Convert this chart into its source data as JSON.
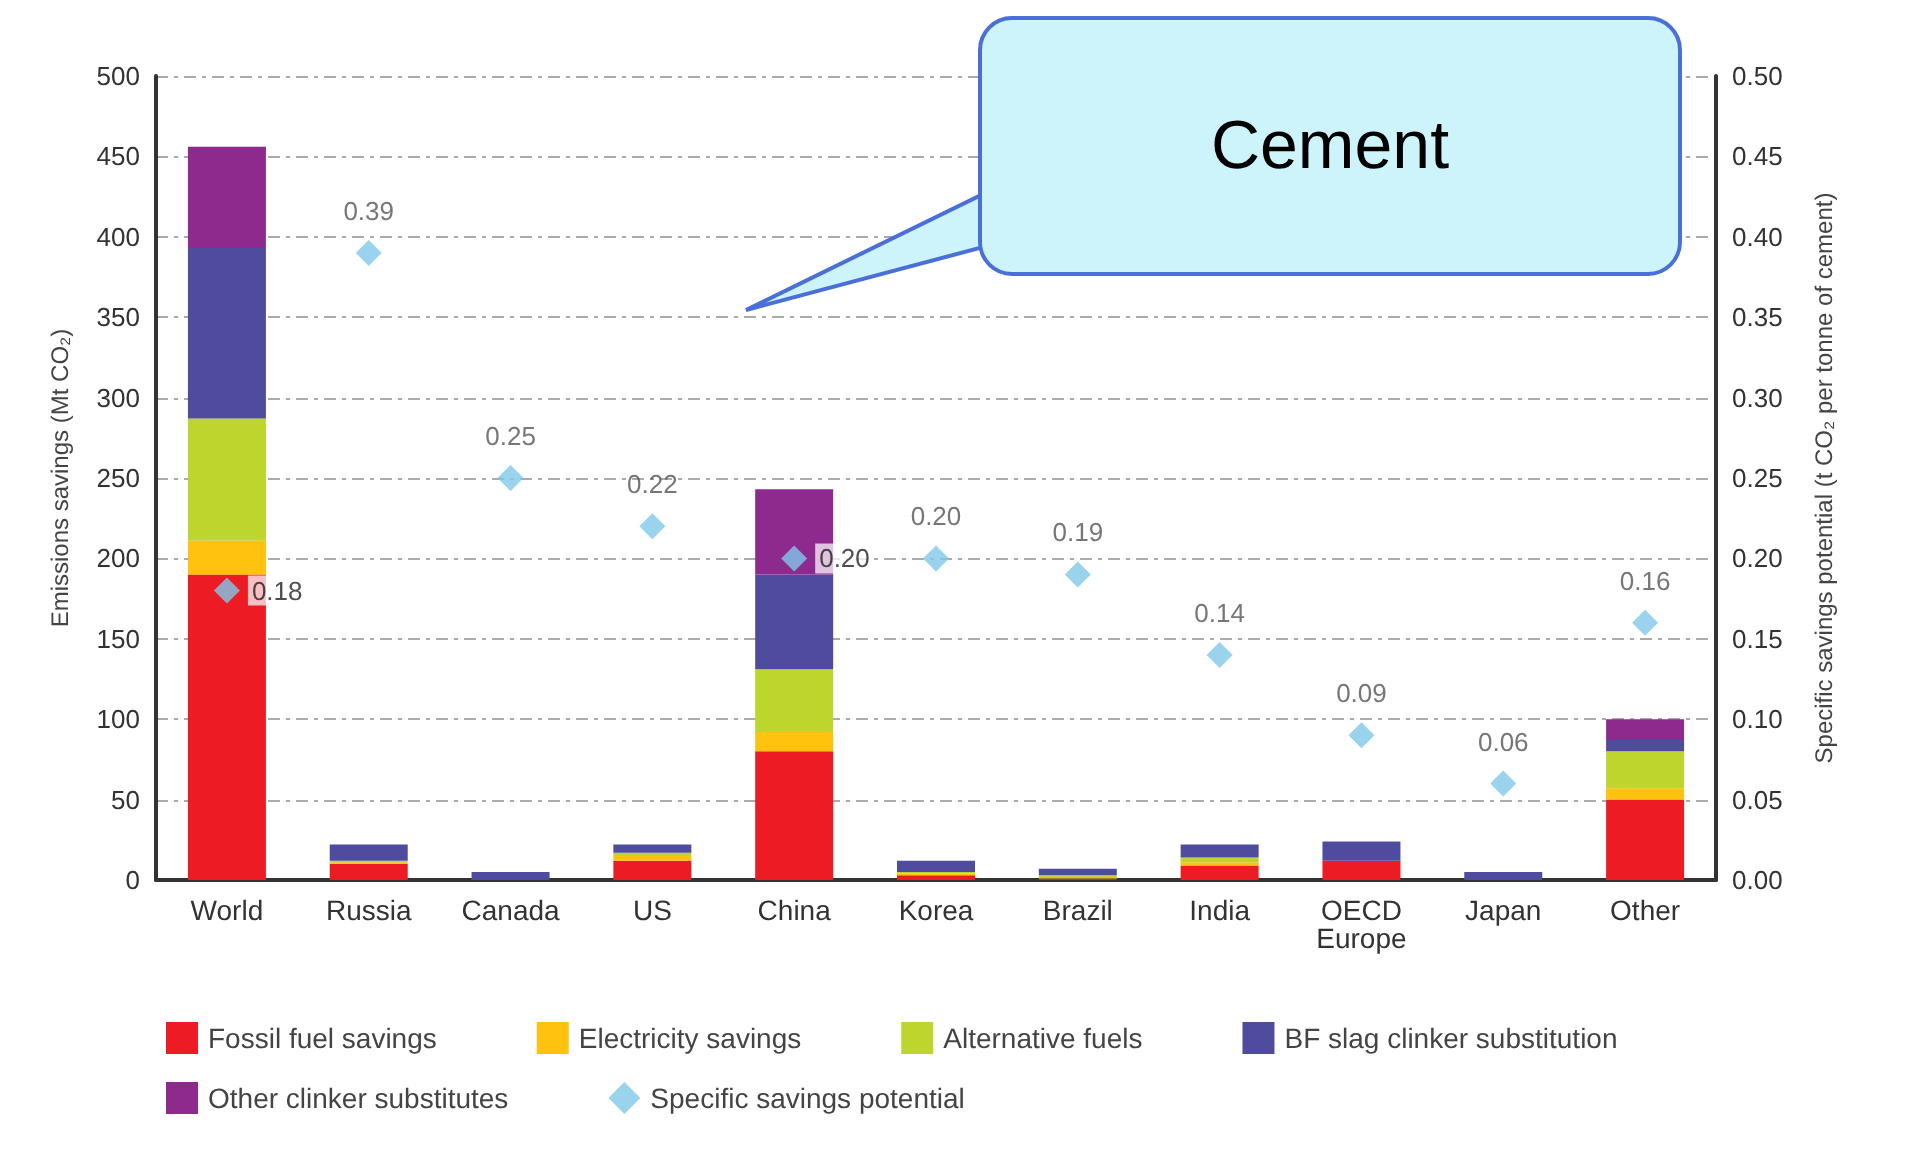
{
  "chart_data": {
    "type": "bar",
    "stacked": true,
    "ylabel": "Emissions savings (Mt CO₂)",
    "y2label": "Specific savings potential (t CO₂ per tonne of cement)",
    "annotations": [
      "Cement"
    ],
    "categories": [
      "World",
      "Russia",
      "Canada",
      "US",
      "China",
      "Korea",
      "Brazil",
      "India",
      "OECD\nEurope",
      "Japan",
      "Other"
    ],
    "series": [
      {
        "name": "Fossil fuel savings",
        "color": "#ed1c24",
        "values": [
          190,
          10,
          0,
          12,
          80,
          3,
          1,
          9,
          12,
          0,
          50
        ]
      },
      {
        "name": "Electricity savings",
        "color": "#ffc20e",
        "values": [
          21,
          1,
          0,
          3,
          12,
          1,
          0,
          2,
          0,
          0,
          7
        ]
      },
      {
        "name": "Alternative fuels",
        "color": "#bed52e",
        "values": [
          76,
          1,
          0,
          2,
          39,
          1,
          2,
          3,
          0,
          0,
          23
        ]
      },
      {
        "name": "BF slag clinker substitution",
        "color": "#4f4c9e",
        "values": [
          106,
          10,
          5,
          5,
          59,
          7,
          4,
          8,
          12,
          5,
          7
        ]
      },
      {
        "name": "Other clinker substitutes",
        "color": "#8e2a8e",
        "values": [
          63,
          0,
          0,
          0,
          53,
          0,
          0,
          0,
          0,
          0,
          13
        ]
      },
      {
        "name": "Specific savings potential",
        "type": "scatter",
        "axis": "y2",
        "marker": "diamond",
        "color": "#7fc8ea",
        "values": [
          0.18,
          0.39,
          0.25,
          0.22,
          0.2,
          0.2,
          0.19,
          0.14,
          0.09,
          0.06,
          0.16
        ],
        "value_labels": [
          "0.18",
          "0.39",
          "0.25",
          "0.22",
          "0.20",
          "0.20",
          "0.19",
          "0.14",
          "0.09",
          "0.06",
          "0.16"
        ]
      }
    ],
    "ylim": [
      0,
      500
    ],
    "yticks": [
      0,
      50,
      100,
      150,
      200,
      250,
      300,
      350,
      400,
      450,
      500
    ],
    "y2lim": [
      0,
      0.5
    ],
    "y2ticks": [
      {
        "value": 0,
        "label": "0.00"
      },
      {
        "value": 0.05,
        "label": "0.05"
      },
      {
        "value": 0.1,
        "label": "0.10"
      },
      {
        "value": 0.15,
        "label": "0.15"
      },
      {
        "value": 0.2,
        "label": "0.20"
      },
      {
        "value": 0.25,
        "label": "0.25"
      },
      {
        "value": 0.3,
        "label": "0.30"
      },
      {
        "value": 0.35,
        "label": "0.35"
      },
      {
        "value": 0.4,
        "label": "0.40"
      },
      {
        "value": 0.45,
        "label": "0.45"
      },
      {
        "value": 0.5,
        "label": "0.50"
      }
    ],
    "grid": "y",
    "legend": "bottom"
  }
}
